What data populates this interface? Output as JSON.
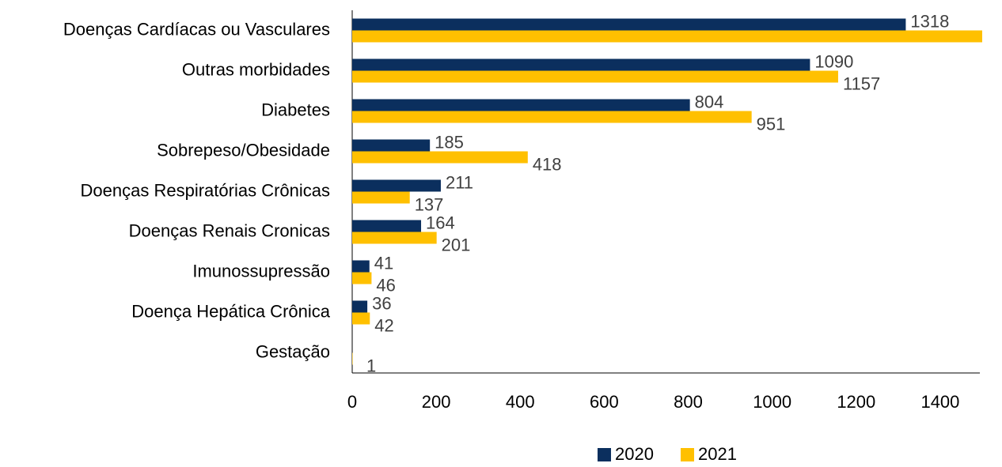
{
  "chart_data": {
    "type": "barh",
    "categories": [
      "Doenças Cardíacas ou Vasculares",
      "Outras morbidades",
      "Diabetes",
      "Sobrepeso/Obesidade",
      "Doenças Respiratórias Crônicas",
      "Doenças Renais Cronicas",
      "Imunossupressão",
      "Doença Hepática Crônica",
      "Gestação"
    ],
    "series": [
      {
        "name": "2020",
        "color": "#0b2f5e",
        "values": [
          1318,
          1090,
          804,
          185,
          211,
          164,
          41,
          36,
          null
        ]
      },
      {
        "name": "2021",
        "color": "#ffc000",
        "values": [
          1500,
          1157,
          951,
          418,
          137,
          201,
          46,
          42,
          1
        ]
      }
    ],
    "xlim": [
      0,
      1500
    ],
    "xticks": [
      0,
      200,
      400,
      600,
      800,
      1000,
      1200,
      1400
    ],
    "legend": "bottom"
  }
}
